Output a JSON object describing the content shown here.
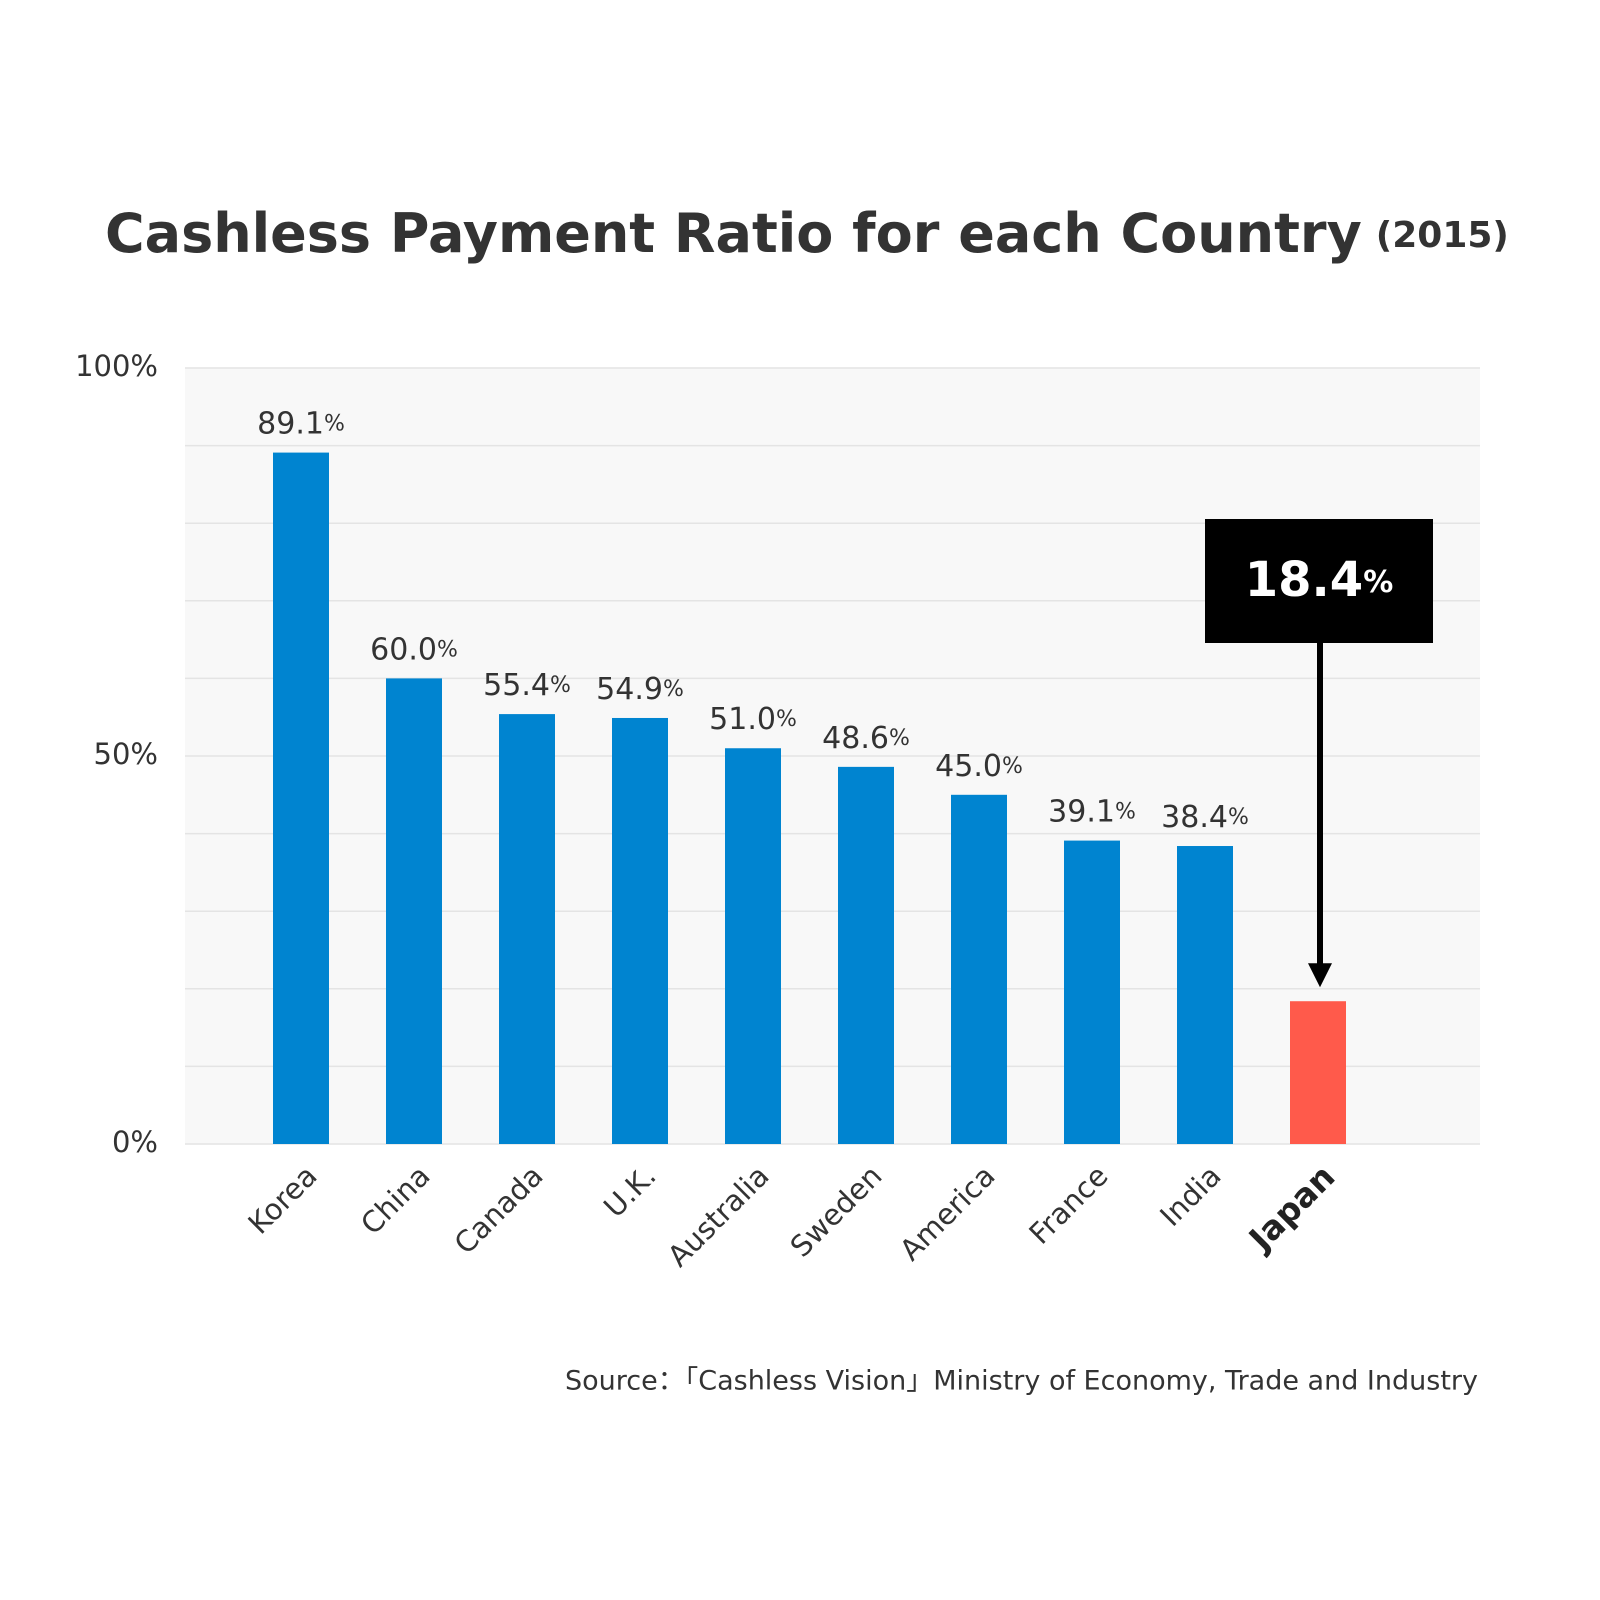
{
  "chart_data": {
    "type": "bar",
    "title": "Cashless Payment Ratio for each Country",
    "subtitle": "(2015)",
    "categories": [
      "Korea",
      "China",
      "Canada",
      "U.K.",
      "Australia",
      "Sweden",
      "America",
      "France",
      "India",
      "Japan"
    ],
    "values": [
      89.1,
      60.0,
      55.4,
      54.9,
      51.0,
      48.6,
      45.0,
      39.1,
      38.4,
      18.4
    ],
    "value_labels": [
      "89.1%",
      "60.0%",
      "55.4%",
      "54.9%",
      "51.0%",
      "48.6%",
      "45.0%",
      "39.1%",
      "38.4%",
      "18.4%"
    ],
    "colors": [
      "#0084d0",
      "#0084d0",
      "#0084d0",
      "#0084d0",
      "#0084d0",
      "#0084d0",
      "#0084d0",
      "#0084d0",
      "#0084d0",
      "#ff5a4b"
    ],
    "highlight": 9,
    "ylim": [
      0,
      100
    ],
    "yticks": [
      {
        "value": 0,
        "label": "0%"
      },
      {
        "value": 50,
        "label": "50%"
      },
      {
        "value": 100,
        "label": "100%"
      }
    ],
    "grid_lines": [
      0,
      10,
      20,
      30,
      40,
      50,
      60,
      70,
      80,
      90,
      100
    ],
    "grid": true,
    "source": "Source：「Cashless Vision」Ministry of Economy, Trade and Industry"
  }
}
